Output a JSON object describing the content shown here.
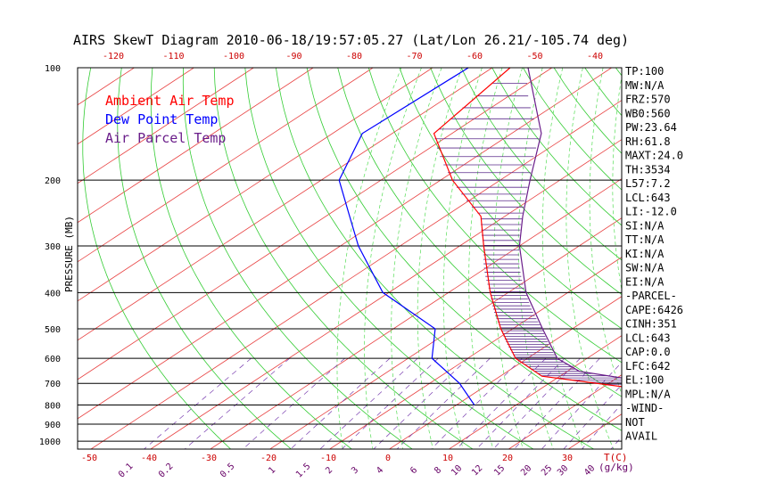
{
  "chart_data": {
    "type": "line",
    "title": "AIRS SkewT Diagram 2010-06-18/19:57:05.27 (Lat/Lon 26.21/-105.74 deg)",
    "ylabel": "PRESSURE (MB)",
    "xlabel_unit": "T(C)",
    "mixing_ratio_unit": "(g/kg)",
    "pressure_ticks": [
      100,
      200,
      300,
      400,
      500,
      600,
      700,
      800,
      900,
      1000
    ],
    "top_temp_ticks": [
      -120,
      -110,
      -100,
      -90,
      -80,
      -70,
      -60,
      -50,
      -40
    ],
    "bottom_temp_ticks": [
      -50,
      -40,
      -30,
      -20,
      -10,
      0,
      10,
      20,
      30
    ],
    "mixing_ratio_ticks": [
      "0.1",
      "0.2",
      "0.5",
      "1",
      "1.5",
      "2",
      "3",
      "4",
      "6",
      "8",
      "10",
      "12",
      "15",
      "20",
      "25",
      "30",
      "40"
    ],
    "legend": [
      {
        "label": "Ambient Air Temp",
        "color": "#ff0000"
      },
      {
        "label": "Dew Point Temp",
        "color": "#0000ff"
      },
      {
        "label": "Air Parcel Temp",
        "color": "#6a1d8a"
      }
    ],
    "series": [
      {
        "name": "Ambient Air Temp",
        "color": "#ff0000",
        "points": [
          [
            100,
            -77
          ],
          [
            150,
            -73
          ],
          [
            200,
            -58
          ],
          [
            250,
            -44
          ],
          [
            300,
            -36
          ],
          [
            400,
            -23
          ],
          [
            500,
            -12
          ],
          [
            600,
            -2
          ],
          [
            670,
            7
          ],
          [
            720,
            25
          ],
          [
            760,
            40
          ]
        ]
      },
      {
        "name": "Dew Point Temp",
        "color": "#0000ff",
        "points": [
          [
            100,
            -84
          ],
          [
            150,
            -85
          ],
          [
            200,
            -77
          ],
          [
            250,
            -66
          ],
          [
            300,
            -57
          ],
          [
            400,
            -41
          ],
          [
            500,
            -23
          ],
          [
            600,
            -16
          ],
          [
            700,
            -5
          ],
          [
            800,
            3
          ]
        ]
      },
      {
        "name": "Air Parcel Temp",
        "color": "#6a1d8a",
        "points": [
          [
            100,
            -74
          ],
          [
            150,
            -55
          ],
          [
            200,
            -45
          ],
          [
            250,
            -37
          ],
          [
            300,
            -30
          ],
          [
            400,
            -17
          ],
          [
            500,
            -5
          ],
          [
            600,
            5
          ],
          [
            650,
            12
          ],
          [
            700,
            28
          ],
          [
            760,
            40
          ]
        ]
      }
    ],
    "indices": [
      "TP:100",
      "MW:N/A",
      "FRZ:570",
      "WB0:560",
      "PW:23.64",
      "RH:61.8",
      "MAXT:24.0",
      "TH:3534",
      "L57:7.2",
      "LCL:643",
      "LI:-12.0",
      "SI:N/A",
      "TT:N/A",
      "KI:N/A",
      "SW:N/A",
      "EI:N/A",
      "-PARCEL-",
      "CAPE:6426",
      "CINH:351",
      "LCL:643",
      "CAP:0.0",
      "LFC:642",
      "EL:100",
      "MPL:N/A",
      "-WIND-",
      "NOT",
      "AVAIL"
    ]
  }
}
